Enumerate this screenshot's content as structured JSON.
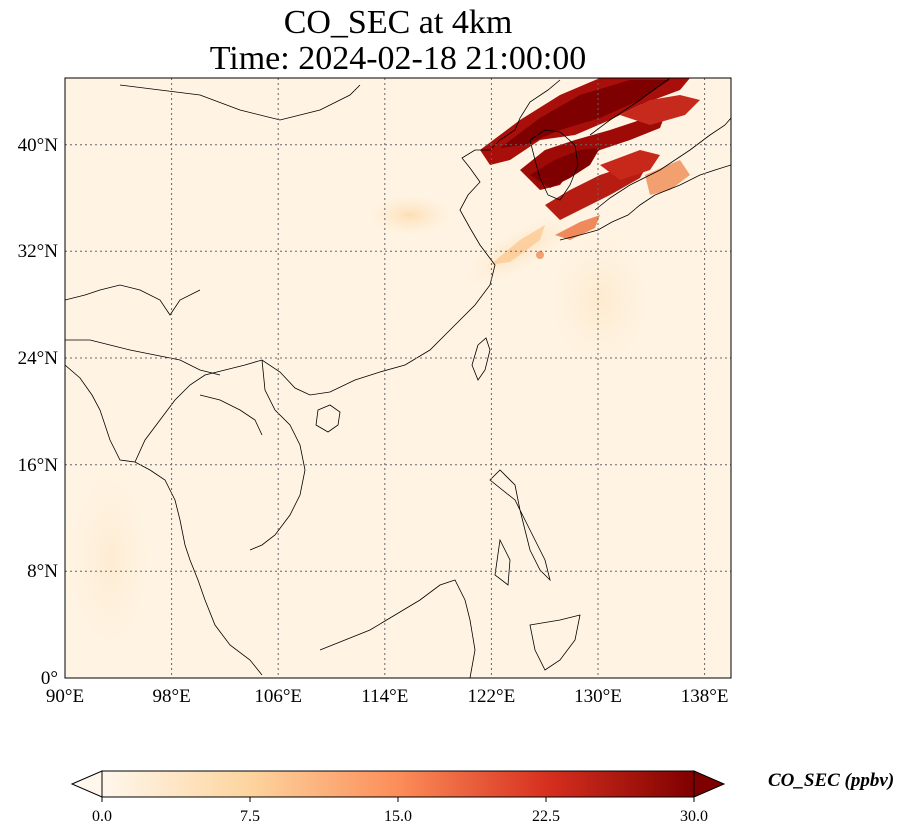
{
  "title": {
    "line1": "CO_SEC at 4km",
    "line2": "Time: 2024-02-18 21:00:00"
  },
  "map": {
    "lon_ticks": [
      "90°E",
      "98°E",
      "106°E",
      "114°E",
      "122°E",
      "130°E",
      "138°E"
    ],
    "lat_ticks": [
      "0°",
      "8°N",
      "16°N",
      "24°N",
      "32°N",
      "40°N"
    ],
    "lon_range": [
      90,
      140
    ],
    "lat_range": [
      0,
      45
    ],
    "gridlines": true,
    "colormap": "OrRd"
  },
  "colorbar": {
    "label": "CO_SEC (ppbv)",
    "ticks": [
      "0.0",
      "7.5",
      "15.0",
      "22.5",
      "30.0"
    ],
    "min": 0,
    "max": 30,
    "colors": [
      "#fff7ec",
      "#fdd49e",
      "#fc8d59",
      "#d7301f",
      "#7f0000"
    ]
  }
}
